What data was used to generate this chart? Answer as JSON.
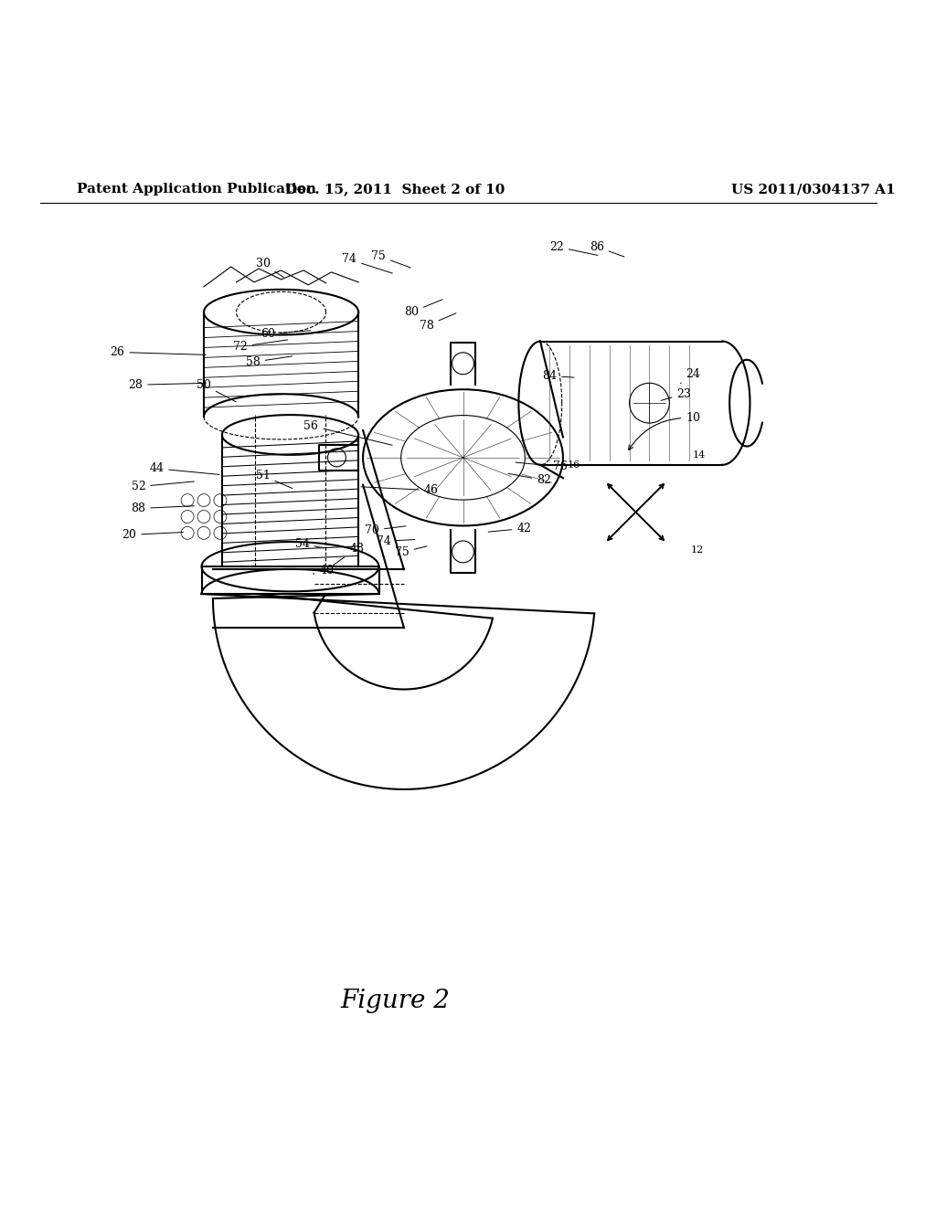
{
  "title": "",
  "header_left": "Patent Application Publication",
  "header_center": "Dec. 15, 2011  Sheet 2 of 10",
  "header_right": "US 2011/0304137 A1",
  "figure_label": "Figure 2",
  "background_color": "#ffffff",
  "line_color": "#000000",
  "header_fontsize": 11,
  "figure_label_fontsize": 20,
  "label_fontsize": 9
}
